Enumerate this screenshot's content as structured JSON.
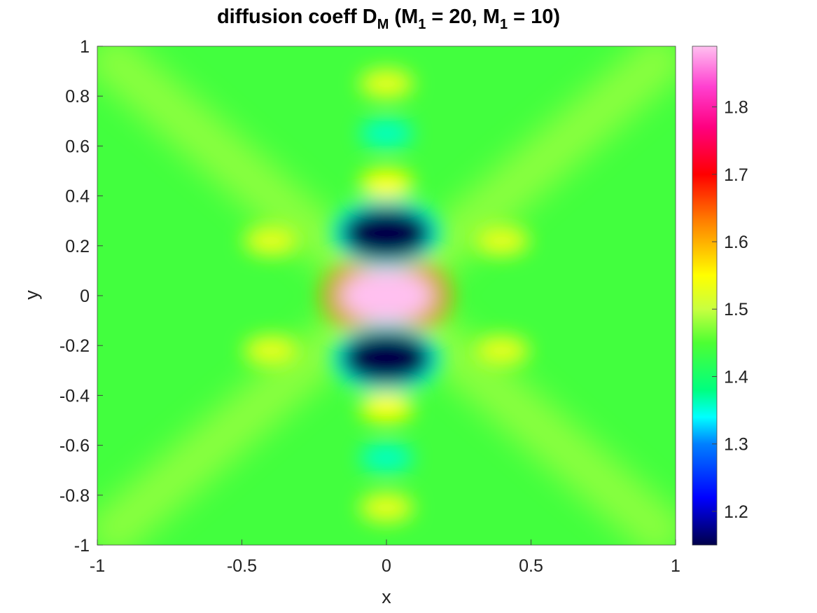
{
  "chart_data": {
    "type": "heatmap",
    "title": {
      "prefix": "diffusion coeff D",
      "prefix_sub": "M",
      "mid1": " (M",
      "mid1_sub": "1",
      "mid2": " = 20, M",
      "mid2_sub": "1",
      "suffix": " = 10)"
    },
    "xlabel": "x",
    "ylabel": "y",
    "xlim": [
      -1,
      1
    ],
    "ylim": [
      -1,
      1
    ],
    "x_ticks": [
      {
        "value": -1,
        "label": "-1"
      },
      {
        "value": -0.5,
        "label": "-0.5"
      },
      {
        "value": 0,
        "label": "0"
      },
      {
        "value": 0.5,
        "label": "0.5"
      },
      {
        "value": 1,
        "label": "1"
      }
    ],
    "y_ticks": [
      {
        "value": 1,
        "label": "1"
      },
      {
        "value": 0.8,
        "label": "0.8"
      },
      {
        "value": 0.6,
        "label": "0.6"
      },
      {
        "value": 0.4,
        "label": "0.4"
      },
      {
        "value": 0.2,
        "label": "0.2"
      },
      {
        "value": 0,
        "label": "0"
      },
      {
        "value": -0.2,
        "label": "-0.2"
      },
      {
        "value": -0.4,
        "label": "-0.4"
      },
      {
        "value": -0.6,
        "label": "-0.6"
      },
      {
        "value": -0.8,
        "label": "-0.8"
      },
      {
        "value": -1,
        "label": "-1"
      }
    ],
    "colorbar": {
      "range": [
        1.15,
        1.89
      ],
      "colormap": "hsv-like (dark navy → blue → cyan → green → yellow → orange → red → magenta → pink)",
      "stops": [
        {
          "value": 1.15,
          "color": "#00004a"
        },
        {
          "value": 1.22,
          "color": "#0000ff"
        },
        {
          "value": 1.3,
          "color": "#0080ff"
        },
        {
          "value": 1.34,
          "color": "#00ffff"
        },
        {
          "value": 1.38,
          "color": "#00ff80"
        },
        {
          "value": 1.45,
          "color": "#4dff33"
        },
        {
          "value": 1.5,
          "color": "#c8ff40"
        },
        {
          "value": 1.55,
          "color": "#ffff00"
        },
        {
          "value": 1.63,
          "color": "#ff8000"
        },
        {
          "value": 1.7,
          "color": "#ff0000"
        },
        {
          "value": 1.77,
          "color": "#ff0080"
        },
        {
          "value": 1.83,
          "color": "#ff40d0"
        },
        {
          "value": 1.89,
          "color": "#ffc0f0"
        }
      ],
      "ticks": [
        {
          "value": 1.2,
          "label": "1.2"
        },
        {
          "value": 1.3,
          "label": "1.3"
        },
        {
          "value": 1.4,
          "label": "1.4"
        },
        {
          "value": 1.5,
          "label": "1.5"
        },
        {
          "value": 1.6,
          "label": "1.6"
        },
        {
          "value": 1.7,
          "label": "1.7"
        },
        {
          "value": 1.8,
          "label": "1.8"
        }
      ]
    },
    "background_value": 1.44,
    "features": [
      {
        "x": 0,
        "y": 0,
        "value": 1.89
      },
      {
        "x": 0,
        "y": 0.25,
        "value": 1.15
      },
      {
        "x": 0,
        "y": -0.25,
        "value": 1.15
      },
      {
        "x": 0,
        "y": 0.45,
        "value": 1.55
      },
      {
        "x": 0,
        "y": -0.45,
        "value": 1.55
      },
      {
        "x": 0,
        "y": 0.65,
        "value": 1.36
      },
      {
        "x": 0,
        "y": -0.65,
        "value": 1.36
      },
      {
        "x": 0,
        "y": 0.85,
        "value": 1.53
      },
      {
        "x": 0,
        "y": -0.85,
        "value": 1.53
      },
      {
        "x": -0.4,
        "y": 0.22,
        "value": 1.53
      },
      {
        "x": 0.4,
        "y": 0.22,
        "value": 1.53
      },
      {
        "x": -0.4,
        "y": -0.22,
        "value": 1.53
      },
      {
        "x": 0.4,
        "y": -0.22,
        "value": 1.53
      }
    ]
  }
}
